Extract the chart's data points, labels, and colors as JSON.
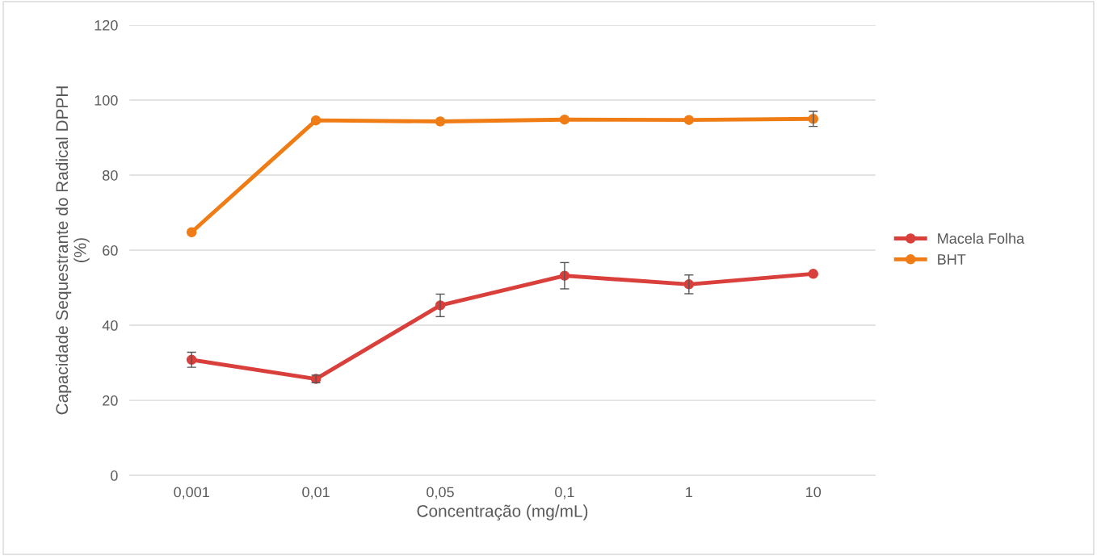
{
  "chart_data": {
    "type": "line",
    "xlabel": "Concentração (mg/mL)",
    "ylabel": "Capacidade Sequestrante do Radical DPPH\n(%)",
    "categories": [
      "0,001",
      "0,01",
      "0,05",
      "0,1",
      "1",
      "10"
    ],
    "series": [
      {
        "name": "Macela Folha",
        "color": "#d9403b",
        "values": [
          30.8,
          25.7,
          45.3,
          53.2,
          50.9,
          53.7
        ],
        "errors": [
          2,
          1,
          3,
          3.5,
          2.5,
          null
        ]
      },
      {
        "name": "BHT",
        "color": "#f07c16",
        "values": [
          64.8,
          94.6,
          94.3,
          94.8,
          94.7,
          95.0
        ],
        "errors": [
          null,
          null,
          null,
          null,
          null,
          2
        ]
      }
    ],
    "ylim": [
      0,
      120
    ],
    "yticks": [
      0,
      20,
      40,
      60,
      80,
      100,
      120
    ],
    "grid": "y",
    "legend": "right",
    "marker": "circle",
    "line_style": "solid"
  }
}
